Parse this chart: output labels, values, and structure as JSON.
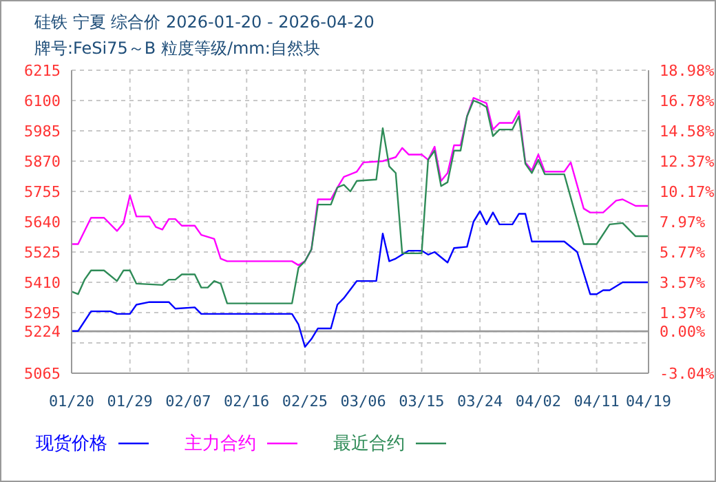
{
  "chart_data": {
    "type": "line",
    "title": "硅铁 宁夏 综合价 2026-01-20 - 2026-04-20",
    "subtitle": "牌号:FeSi75～B 粒度等级/mm:自然块",
    "xlim": [
      "2026-01-20",
      "2026-04-19"
    ],
    "xticks": [
      {
        "value": "2026-01-20",
        "label": "01/20"
      },
      {
        "value": "2026-01-29",
        "label": "01/29"
      },
      {
        "value": "2026-02-07",
        "label": "02/07"
      },
      {
        "value": "2026-02-16",
        "label": "02/16"
      },
      {
        "value": "2026-02-25",
        "label": "02/25"
      },
      {
        "value": "2026-03-06",
        "label": "03/06"
      },
      {
        "value": "2026-03-15",
        "label": "03/15"
      },
      {
        "value": "2026-03-24",
        "label": "03/24"
      },
      {
        "value": "2026-04-02",
        "label": "04/02"
      },
      {
        "value": "2026-04-11",
        "label": "04/11"
      },
      {
        "value": "2026-04-19",
        "label": "04/19"
      }
    ],
    "ylim": [
      5065,
      6215
    ],
    "yticks": [
      6215,
      6100,
      5985,
      5870,
      5755,
      5640,
      5525,
      5410,
      5295,
      5224,
      {
        "value": 5180,
        "label": null
      },
      5065
    ],
    "y2lim": [
      -3.04,
      18.98
    ],
    "y2ticks": [
      {
        "value": 18.98,
        "label": "18.98%"
      },
      {
        "value": 16.78,
        "label": "16.78%"
      },
      {
        "value": 14.58,
        "label": "14.58%"
      },
      {
        "value": 12.37,
        "label": "12.37%"
      },
      {
        "value": 10.17,
        "label": "10.17%"
      },
      {
        "value": 7.97,
        "label": "7.97%"
      },
      {
        "value": 5.77,
        "label": "5.77%"
      },
      {
        "value": 3.57,
        "label": "3.57%"
      },
      {
        "value": 1.37,
        "label": "1.37%"
      },
      {
        "value": 0,
        "label": "0.00%"
      },
      {
        "value": -3.04,
        "label": "-3.04%"
      }
    ],
    "ref_lines": [
      {
        "axis": "y",
        "value": 5224,
        "color": "#999999",
        "line_style": "solid"
      }
    ],
    "grid": true,
    "legend": "bottom",
    "line_style": "solid",
    "marker": "none",
    "series": [
      {
        "name": "现货价格",
        "color": "#0000ff",
        "x": [
          "2026-01-20",
          "2026-01-21",
          "2026-01-23",
          "2026-01-26",
          "2026-01-27",
          "2026-01-29",
          "2026-01-30",
          "2026-02-01",
          "2026-02-04",
          "2026-02-05",
          "2026-02-08",
          "2026-02-09",
          "2026-02-23",
          "2026-02-24",
          "2026-02-25",
          "2026-02-26",
          "2026-02-27",
          "2026-03-01",
          "2026-03-02",
          "2026-03-03",
          "2026-03-05",
          "2026-03-08",
          "2026-03-09",
          "2026-03-10",
          "2026-03-11",
          "2026-03-13",
          "2026-03-15",
          "2026-03-16",
          "2026-03-17",
          "2026-03-19",
          "2026-03-20",
          "2026-03-22",
          "2026-03-23",
          "2026-03-24",
          "2026-03-25",
          "2026-03-26",
          "2026-03-27",
          "2026-03-29",
          "2026-03-30",
          "2026-03-31",
          "2026-04-01",
          "2026-04-06",
          "2026-04-08",
          "2026-04-10",
          "2026-04-11",
          "2026-04-12",
          "2026-04-13",
          "2026-04-15",
          "2026-04-19"
        ],
        "values": [
          5225,
          5225,
          5300,
          5300,
          5290,
          5290,
          5325,
          5335,
          5335,
          5310,
          5315,
          5290,
          5290,
          5250,
          5165,
          5195,
          5235,
          5235,
          5325,
          5350,
          5415,
          5415,
          5595,
          5490,
          5500,
          5530,
          5530,
          5515,
          5525,
          5485,
          5540,
          5545,
          5640,
          5680,
          5630,
          5675,
          5630,
          5630,
          5670,
          5670,
          5565,
          5565,
          5525,
          5365,
          5365,
          5380,
          5380,
          5410,
          5410
        ]
      },
      {
        "name": "主力合约",
        "color": "#ff00ff",
        "x": [
          "2026-01-20",
          "2026-01-21",
          "2026-01-23",
          "2026-01-25",
          "2026-01-27",
          "2026-01-28",
          "2026-01-29",
          "2026-01-30",
          "2026-02-01",
          "2026-02-02",
          "2026-02-03",
          "2026-02-04",
          "2026-02-05",
          "2026-02-06",
          "2026-02-08",
          "2026-02-09",
          "2026-02-11",
          "2026-02-12",
          "2026-02-13",
          "2026-02-23",
          "2026-02-24",
          "2026-02-25",
          "2026-02-26",
          "2026-02-27",
          "2026-03-01",
          "2026-03-02",
          "2026-03-03",
          "2026-03-05",
          "2026-03-06",
          "2026-03-09",
          "2026-03-11",
          "2026-03-12",
          "2026-03-13",
          "2026-03-15",
          "2026-03-16",
          "2026-03-17",
          "2026-03-18",
          "2026-03-19",
          "2026-03-20",
          "2026-03-21",
          "2026-03-22",
          "2026-03-23",
          "2026-03-24",
          "2026-03-25",
          "2026-03-26",
          "2026-03-27",
          "2026-03-29",
          "2026-03-30",
          "2026-03-31",
          "2026-04-01",
          "2026-04-02",
          "2026-04-03",
          "2026-04-06",
          "2026-04-07",
          "2026-04-09",
          "2026-04-10",
          "2026-04-12",
          "2026-04-14",
          "2026-04-15",
          "2026-04-17",
          "2026-04-19"
        ],
        "values": [
          5555,
          5555,
          5655,
          5655,
          5605,
          5635,
          5740,
          5660,
          5660,
          5620,
          5610,
          5650,
          5650,
          5625,
          5625,
          5590,
          5575,
          5500,
          5490,
          5490,
          5475,
          5490,
          5535,
          5725,
          5725,
          5770,
          5810,
          5830,
          5865,
          5870,
          5885,
          5920,
          5895,
          5895,
          5875,
          5925,
          5795,
          5825,
          5930,
          5930,
          6040,
          6110,
          6100,
          6090,
          5990,
          6015,
          6015,
          6060,
          5865,
          5835,
          5895,
          5830,
          5830,
          5865,
          5690,
          5675,
          5675,
          5720,
          5725,
          5700,
          5700
        ]
      },
      {
        "name": "最近合约",
        "color": "#2e8b57",
        "x": [
          "2026-01-20",
          "2026-01-21",
          "2026-01-22",
          "2026-01-23",
          "2026-01-25",
          "2026-01-27",
          "2026-01-28",
          "2026-01-29",
          "2026-01-30",
          "2026-02-03",
          "2026-02-04",
          "2026-02-05",
          "2026-02-06",
          "2026-02-08",
          "2026-02-09",
          "2026-02-10",
          "2026-02-11",
          "2026-02-12",
          "2026-02-13",
          "2026-02-23",
          "2026-02-24",
          "2026-02-25",
          "2026-02-26",
          "2026-02-27",
          "2026-03-01",
          "2026-03-02",
          "2026-03-03",
          "2026-03-04",
          "2026-03-05",
          "2026-03-08",
          "2026-03-09",
          "2026-03-10",
          "2026-03-11",
          "2026-03-12",
          "2026-03-15",
          "2026-03-16",
          "2026-03-17",
          "2026-03-18",
          "2026-03-19",
          "2026-03-20",
          "2026-03-21",
          "2026-03-22",
          "2026-03-23",
          "2026-03-24",
          "2026-03-25",
          "2026-03-26",
          "2026-03-27",
          "2026-03-29",
          "2026-03-30",
          "2026-03-31",
          "2026-04-01",
          "2026-04-02",
          "2026-04-03",
          "2026-04-06",
          "2026-04-09",
          "2026-04-11",
          "2026-04-13",
          "2026-04-15",
          "2026-04-17",
          "2026-04-19"
        ],
        "values": [
          5375,
          5365,
          5420,
          5455,
          5455,
          5415,
          5455,
          5455,
          5405,
          5400,
          5420,
          5420,
          5440,
          5440,
          5390,
          5390,
          5415,
          5405,
          5330,
          5330,
          5465,
          5490,
          5535,
          5705,
          5705,
          5770,
          5780,
          5755,
          5795,
          5800,
          5995,
          5850,
          5825,
          5520,
          5520,
          5875,
          5910,
          5775,
          5790,
          5910,
          5910,
          6040,
          6100,
          6090,
          6075,
          5965,
          5990,
          5990,
          6040,
          5860,
          5825,
          5875,
          5820,
          5820,
          5555,
          5555,
          5630,
          5635,
          5585,
          5585
        ]
      }
    ]
  }
}
